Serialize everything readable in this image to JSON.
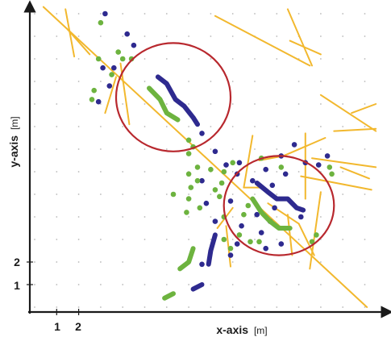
{
  "chart_data": {
    "type": "scatter",
    "xlabel": "x-axis",
    "xlabel_unit": "[m]",
    "ylabel": "y-axis",
    "ylabel_unit": "[m]",
    "xticks": [
      "1",
      "2"
    ],
    "yticks": [
      "1",
      "2"
    ],
    "xlim": [
      0,
      15.5
    ],
    "ylim": [
      0,
      13.3
    ],
    "grid": "dotted",
    "colors": {
      "roads": "#f2b82e",
      "series_blue": "#2e2a8f",
      "series_green": "#6db33f",
      "circles": "#b8282e",
      "grid": "#b8b8b8"
    },
    "roads": [
      [
        [
          0.4,
          13.3
        ],
        [
          15.1,
          0
        ]
      ],
      [
        [
          1.4,
          13.2
        ],
        [
          1.8,
          11.1
        ]
      ],
      [
        [
          1.5,
          12.3
        ],
        [
          2.5,
          11.2
        ]
      ],
      [
        [
          3.7,
          10.2
        ],
        [
          3.2,
          8.6
        ]
      ],
      [
        [
          3.9,
          10.8
        ],
        [
          4.3,
          8.1
        ]
      ],
      [
        [
          8.2,
          12.9
        ],
        [
          12.5,
          10.7
        ]
      ],
      [
        [
          11.5,
          13.2
        ],
        [
          12.6,
          10.7
        ]
      ],
      [
        [
          11.6,
          11.8
        ],
        [
          13.0,
          11.2
        ]
      ],
      [
        [
          9.9,
          7.6
        ],
        [
          9.5,
          5.3
        ]
      ],
      [
        [
          9.5,
          5.3
        ],
        [
          10.3,
          5.3
        ]
      ],
      [
        [
          10.2,
          6.5
        ],
        [
          11.3,
          6.7
        ]
      ],
      [
        [
          11.3,
          6.7
        ],
        [
          13.2,
          7.5
        ]
      ],
      [
        [
          12.6,
          6.6
        ],
        [
          15.5,
          6.2
        ]
      ],
      [
        [
          13.0,
          9.4
        ],
        [
          15.5,
          7.8
        ]
      ],
      [
        [
          13.6,
          7.8
        ],
        [
          15.5,
          7.9
        ]
      ],
      [
        [
          14.4,
          8.6
        ],
        [
          15.5,
          9.0
        ]
      ],
      [
        [
          13.9,
          6.2
        ],
        [
          15.2,
          5.7
        ]
      ],
      [
        [
          12.1,
          5.8
        ],
        [
          15.3,
          5.2
        ]
      ],
      [
        [
          12.3,
          7.7
        ],
        [
          12.3,
          4.8
        ]
      ],
      [
        [
          10.6,
          4.6
        ],
        [
          12.0,
          3.7
        ]
      ],
      [
        [
          12.0,
          3.7
        ],
        [
          12.7,
          2.3
        ]
      ],
      [
        [
          13.0,
          5.1
        ],
        [
          12.5,
          1.7
        ]
      ],
      [
        [
          11.5,
          4.1
        ],
        [
          11.7,
          2.3
        ]
      ],
      [
        [
          8.7,
          3.6
        ],
        [
          8.9,
          1.8
        ]
      ],
      [
        [
          8.3,
          3.5
        ],
        [
          9.0,
          4.4
        ]
      ]
    ],
    "series": [
      {
        "style": "dots",
        "color": "series_blue",
        "points": [
          [
            3.2,
            13.0
          ],
          [
            4.2,
            12.1
          ],
          [
            4.5,
            11.6
          ],
          [
            3.1,
            10.6
          ],
          [
            3.6,
            10.6
          ],
          [
            3.4,
            9.8
          ],
          [
            2.9,
            9.1
          ],
          [
            7.6,
            7.7
          ],
          [
            8.2,
            6.9
          ],
          [
            8.7,
            6.3
          ],
          [
            9.3,
            6.4
          ],
          [
            9.2,
            5.9
          ],
          [
            10.5,
            6.1
          ],
          [
            11.8,
            7.2
          ],
          [
            11.2,
            6.7
          ],
          [
            11.4,
            5.9
          ],
          [
            12.3,
            6.4
          ],
          [
            12.9,
            6.3
          ],
          [
            13.3,
            6.7
          ],
          [
            7.6,
            5.6
          ],
          [
            7.8,
            4.6
          ],
          [
            8.2,
            3.8
          ],
          [
            8.9,
            4.7
          ],
          [
            9.4,
            3.6
          ],
          [
            10.3,
            3.3
          ],
          [
            10.1,
            4.1
          ],
          [
            10.7,
            3.8
          ],
          [
            9.2,
            2.8
          ],
          [
            10.5,
            2.6
          ],
          [
            8.9,
            2.3
          ],
          [
            7.6,
            1.9
          ],
          [
            11.2,
            2.8
          ],
          [
            12.1,
            4.0
          ],
          [
            10.9,
            4.4
          ],
          [
            10.8,
            5.4
          ],
          [
            9.9,
            5.6
          ]
        ]
      },
      {
        "style": "dots",
        "color": "series_green",
        "points": [
          [
            3.0,
            12.6
          ],
          [
            3.8,
            11.3
          ],
          [
            2.9,
            11.0
          ],
          [
            3.5,
            10.3
          ],
          [
            2.7,
            9.6
          ],
          [
            2.6,
            9.2
          ],
          [
            4.4,
            11.0
          ],
          [
            4.0,
            11.0
          ],
          [
            7.0,
            7.4
          ],
          [
            7.2,
            7.1
          ],
          [
            7.0,
            6.8
          ],
          [
            7.4,
            6.2
          ],
          [
            7.0,
            5.9
          ],
          [
            7.4,
            5.6
          ],
          [
            7.1,
            5.3
          ],
          [
            8.0,
            6.1
          ],
          [
            8.6,
            6.0
          ],
          [
            9.0,
            6.4
          ],
          [
            8.5,
            5.5
          ],
          [
            7.0,
            4.8
          ],
          [
            6.9,
            4.2
          ],
          [
            7.5,
            4.4
          ],
          [
            6.3,
            5.0
          ],
          [
            8.2,
            5.2
          ],
          [
            8.4,
            4.9
          ],
          [
            8.6,
            4.0
          ],
          [
            9.5,
            4.1
          ],
          [
            9.7,
            4.5
          ],
          [
            9.3,
            3.2
          ],
          [
            8.6,
            3.0
          ],
          [
            8.9,
            2.6
          ],
          [
            9.8,
            2.9
          ],
          [
            10.2,
            2.9
          ],
          [
            12.8,
            3.2
          ],
          [
            12.6,
            2.9
          ],
          [
            11.2,
            6.2
          ],
          [
            10.3,
            6.6
          ],
          [
            13.5,
            5.9
          ],
          [
            13.4,
            6.2
          ]
        ]
      },
      {
        "style": "track",
        "color": "series_blue",
        "points": [
          [
            5.6,
            10.2
          ],
          [
            6.0,
            9.9
          ],
          [
            6.4,
            9.2
          ],
          [
            6.8,
            8.9
          ],
          [
            7.2,
            8.4
          ],
          [
            7.4,
            8.1
          ]
        ]
      },
      {
        "style": "track",
        "color": "series_green",
        "points": [
          [
            5.2,
            9.7
          ],
          [
            5.7,
            9.2
          ],
          [
            6.0,
            8.6
          ],
          [
            6.5,
            8.3
          ]
        ]
      },
      {
        "style": "track",
        "color": "series_blue",
        "points": [
          [
            10.1,
            5.5
          ],
          [
            10.6,
            5.1
          ],
          [
            11.0,
            4.8
          ],
          [
            11.5,
            4.8
          ],
          [
            11.9,
            4.4
          ],
          [
            12.2,
            4.3
          ]
        ]
      },
      {
        "style": "track",
        "color": "series_green",
        "points": [
          [
            9.9,
            4.8
          ],
          [
            10.3,
            4.2
          ],
          [
            10.7,
            3.8
          ],
          [
            11.1,
            3.5
          ],
          [
            11.6,
            3.5
          ]
        ]
      },
      {
        "style": "track",
        "color": "series_blue",
        "points": [
          [
            8.2,
            3.2
          ],
          [
            8.0,
            2.5
          ],
          [
            7.9,
            1.9
          ]
        ]
      },
      {
        "style": "track",
        "color": "series_green",
        "points": [
          [
            7.2,
            2.6
          ],
          [
            7.0,
            2.0
          ],
          [
            6.6,
            1.7
          ]
        ]
      },
      {
        "style": "track",
        "color": "series_blue",
        "points": [
          [
            7.2,
            0.8
          ],
          [
            7.6,
            1.0
          ]
        ]
      },
      {
        "style": "track",
        "color": "series_green",
        "points": [
          [
            5.9,
            0.4
          ],
          [
            6.3,
            0.6
          ]
        ]
      }
    ],
    "highlight_circles": [
      {
        "center": [
          6.3,
          9.3
        ],
        "rx": 2.6,
        "ry": 2.4
      },
      {
        "center": [
          11.1,
          4.5
        ],
        "rx": 2.5,
        "ry": 2.2
      }
    ]
  }
}
